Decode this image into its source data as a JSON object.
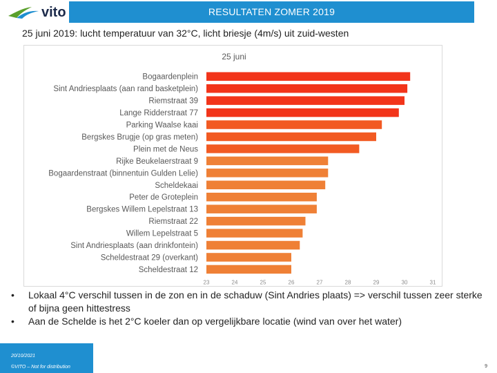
{
  "header": {
    "logo_text": "vito",
    "title": "RESULTATEN ZOMER 2019"
  },
  "subtitle": "25 juni 2019: lucht temperatuur van 32°C, licht briesje (4m/s) uit zuid-westen",
  "colors": {
    "header_blue": "#1f8fd0",
    "bar_red": "#f2341a",
    "bar_orange_red": "#f25a22",
    "bar_orange": "#ef8036"
  },
  "chart_data": {
    "type": "bar",
    "orientation": "horizontal",
    "title": "25 juni",
    "xlim": [
      23,
      31
    ],
    "xticks": [
      "23",
      "24",
      "25",
      "26",
      "27",
      "28",
      "29",
      "30",
      "31"
    ],
    "categories": [
      "Bogaardenplein",
      "Sint Andriesplaats (aan rand basketplein)",
      "Riemstraat 39",
      "Lange Ridderstraat 77",
      "Parking Waalse kaai",
      "Bergskes Brugje (op gras meten)",
      "Plein met de Neus",
      "Rijke Beukelaerstraat 9",
      "Bogaardenstraat (binnentuin Gulden Lelie)",
      "Scheldekaai",
      "Peter de Groteplein",
      "Bergskes Willem Lepelstraat 13",
      "Riemstraat 22",
      "Willem Lepelstraat 5",
      "Sint Andriesplaats (aan drinkfontein)",
      "Scheldestraat 29 (overkant)",
      "Scheldestraat 12"
    ],
    "values": [
      30.2,
      30.1,
      30.0,
      29.8,
      29.2,
      29.0,
      28.4,
      27.3,
      27.3,
      27.2,
      26.9,
      26.9,
      26.5,
      26.4,
      26.3,
      26.0,
      26.0
    ],
    "bar_colors": [
      "#f2341a",
      "#f2341a",
      "#f2341a",
      "#f2341a",
      "#f25a22",
      "#f25a22",
      "#f25a22",
      "#ef8036",
      "#ef8036",
      "#ef8036",
      "#ef8036",
      "#ef8036",
      "#ef8036",
      "#ef8036",
      "#ef8036",
      "#ef8036",
      "#ef8036"
    ],
    "grid": false,
    "legend": "none"
  },
  "bullets": [
    "Lokaal 4°C verschil tussen in de zon en in de schaduw (Sint Andries plaats) => verschil tussen zeer sterke of bijna geen hittestress",
    "Aan de Schelde is het 2°C koeler dan op vergelijkbare locatie (wind van over het water)"
  ],
  "bullet_symbol": "•",
  "footer": {
    "date": "20/10/2021",
    "note": "©VITO – Not for distribution",
    "page": "9"
  }
}
